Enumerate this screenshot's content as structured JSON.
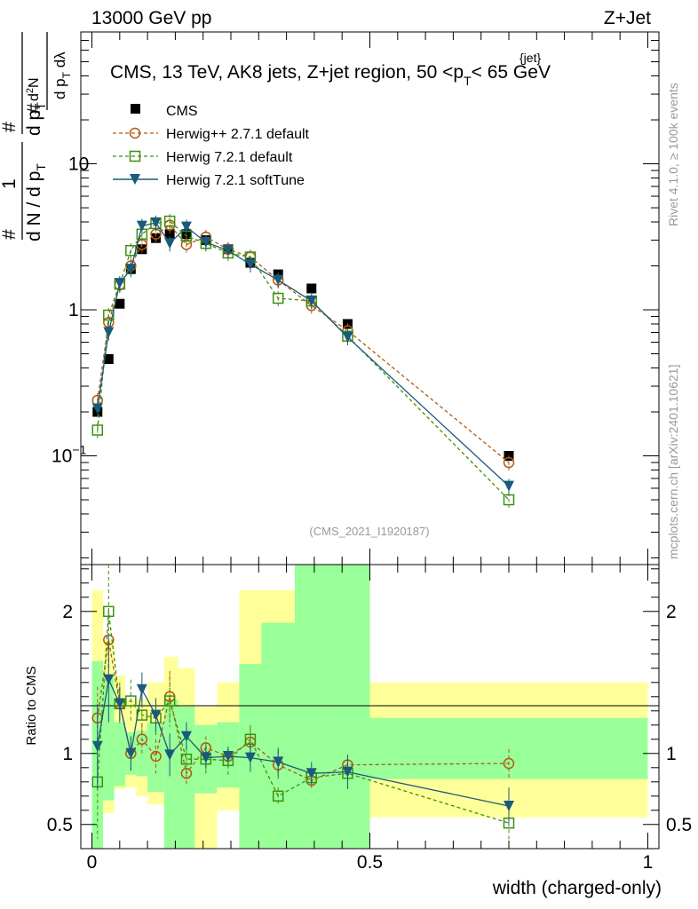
{
  "header": {
    "energy_label": "13000 GeV pp",
    "process_label": "Z+Jet"
  },
  "side_labels": {
    "rivet": "Rivet 4.1.0, ≥ 100k events",
    "mcplots": "mcplots.cern.ch [arXiv:2401.10621]"
  },
  "analysis_tag": "(CMS_2021_I1920187)",
  "colors": {
    "cms": "#000000",
    "herwigpp": "#b05a10",
    "herwig_default": "#3f8f10",
    "herwig_soft": "#1a5a7a",
    "band_inner": "#99ff99",
    "band_outer": "#ffff99"
  },
  "chart_data": [
    {
      "type": "scatter",
      "title": "CMS, 13 TeV, AK8 jets, Z+jet region, 50 <p_T^{jet}< 65 GeV",
      "title_parts": {
        "pre": "CMS, 13 TeV, AK8 jets, Z+jet region, 50 <p",
        "sup": "{jet}",
        "sub": "T",
        "post": "< 65 GeV"
      },
      "xlabel": "width (charged-only)",
      "ylabel": "1/dN/dp_T  d^2N/(dp_T dλ)",
      "yscale": "log",
      "xlim": [
        -0.02,
        1.02
      ],
      "ylim": [
        0.018,
        80
      ],
      "y_ticks": [
        {
          "value": 10,
          "base": "10",
          "exp": ""
        },
        {
          "value": 1,
          "base": "1",
          "exp": ""
        },
        {
          "value": 0.1,
          "base": "10",
          "exp": "−1"
        }
      ],
      "legend": {
        "placement": "top-left",
        "entries": [
          "CMS",
          "Herwig++ 2.7.1 default",
          "Herwig 7.2.1 default",
          "Herwig 7.2.1 softTune"
        ]
      },
      "x": [
        0.01,
        0.03,
        0.05,
        0.07,
        0.09,
        0.115,
        0.14,
        0.17,
        0.205,
        0.245,
        0.285,
        0.335,
        0.395,
        0.46,
        0.75
      ],
      "series": [
        {
          "name": "CMS",
          "values": [
            0.2,
            0.46,
            1.1,
            1.9,
            2.6,
            3.1,
            3.3,
            3.3,
            3.0,
            2.6,
            2.1,
            1.75,
            1.4,
            0.8,
            0.1
          ]
        },
        {
          "name": "Herwig++ 2.7.1 default",
          "values": [
            0.24,
            0.82,
            1.48,
            2.0,
            2.8,
            3.3,
            3.8,
            2.8,
            3.15,
            2.6,
            2.3,
            1.6,
            1.07,
            0.72,
            0.09
          ]
        },
        {
          "name": "Herwig 7.2.1 default",
          "values": [
            0.15,
            0.92,
            1.5,
            2.55,
            3.3,
            3.9,
            4.05,
            3.2,
            2.85,
            2.45,
            2.3,
            1.2,
            1.15,
            0.66,
            0.05
          ]
        },
        {
          "name": "Herwig 7.2.1 softTune",
          "values": [
            0.21,
            0.7,
            1.52,
            1.9,
            3.75,
            3.95,
            2.85,
            3.7,
            2.9,
            2.55,
            2.05,
            1.6,
            1.15,
            0.65,
            0.062
          ]
        }
      ]
    },
    {
      "type": "scatter",
      "ylabel": "Ratio to CMS",
      "xlabel": "width (charged-only)",
      "ylim": [
        0.33,
        2.33
      ],
      "xlim": [
        -0.02,
        1.02
      ],
      "y_ticks": [
        "0.5",
        "1",
        "2"
      ],
      "x_ticks": [
        "0",
        "0.5",
        "1"
      ],
      "band_bins": [
        {
          "lo": 0.0,
          "hi": 0.02,
          "inner": [
            0.33,
            1.65
          ],
          "outer": [
            0.33,
            2.15
          ]
        },
        {
          "lo": 0.02,
          "hi": 0.04,
          "inner": [
            0.67,
            1.55
          ],
          "outer": [
            0.58,
            1.8
          ]
        },
        {
          "lo": 0.04,
          "hi": 0.06,
          "inner": [
            0.77,
            1.22
          ],
          "outer": [
            0.75,
            1.55
          ]
        },
        {
          "lo": 0.06,
          "hi": 0.08,
          "inner": [
            0.85,
            1.15
          ],
          "outer": [
            0.76,
            1.38
          ]
        },
        {
          "lo": 0.08,
          "hi": 0.1,
          "inner": [
            0.84,
            1.16
          ],
          "outer": [
            0.7,
            1.38
          ]
        },
        {
          "lo": 0.1,
          "hi": 0.13,
          "inner": [
            0.73,
            1.22
          ],
          "outer": [
            0.64,
            1.5
          ]
        },
        {
          "lo": 0.13,
          "hi": 0.155,
          "inner": [
            0.33,
            1.38
          ],
          "outer": [
            0.33,
            1.68
          ]
        },
        {
          "lo": 0.155,
          "hi": 0.185,
          "inner": [
            0.33,
            1.33
          ],
          "outer": [
            0.33,
            1.6
          ]
        },
        {
          "lo": 0.185,
          "hi": 0.225,
          "inner": [
            0.72,
            1.2
          ],
          "outer": [
            0.33,
            1.33
          ]
        },
        {
          "lo": 0.225,
          "hi": 0.265,
          "inner": [
            0.76,
            1.22
          ],
          "outer": [
            0.6,
            1.5
          ]
        },
        {
          "lo": 0.265,
          "hi": 0.305,
          "inner": [
            0.33,
            1.63
          ],
          "outer": [
            0.33,
            2.15
          ]
        },
        {
          "lo": 0.305,
          "hi": 0.365,
          "inner": [
            0.33,
            1.92
          ],
          "outer": [
            0.33,
            2.15
          ]
        },
        {
          "lo": 0.365,
          "hi": 0.425,
          "inner": [
            0.33,
            2.33
          ],
          "outer": [
            0.33,
            2.33
          ]
        },
        {
          "lo": 0.425,
          "hi": 0.5,
          "inner": [
            0.33,
            2.33
          ],
          "outer": [
            0.33,
            2.33
          ]
        },
        {
          "lo": 0.5,
          "hi": 1.0,
          "inner": [
            0.82,
            1.25
          ],
          "outer": [
            0.55,
            1.5
          ]
        }
      ],
      "series": [
        {
          "name": "Herwig++ 2.7.1 default",
          "values": [
            1.25,
            1.8,
            1.35,
            1.0,
            1.1,
            0.98,
            1.4,
            0.86,
            1.04,
            0.98,
            1.08,
            0.92,
            0.81,
            0.92,
            0.93
          ],
          "errors": [
            0.22,
            0.22,
            0.12,
            0.12,
            0.1,
            0.12,
            0.18,
            0.08,
            0.08,
            0.06,
            0.1,
            0.1,
            0.06,
            0.07,
            0.1
          ]
        },
        {
          "name": "Herwig 7.2.1 default",
          "values": [
            0.8,
            2.0,
            1.35,
            1.37,
            1.27,
            1.25,
            1.37,
            0.96,
            0.96,
            0.95,
            1.1,
            0.7,
            0.83,
            0.86,
            0.51
          ],
          "errors": [
            0.4,
            0.4,
            0.15,
            0.15,
            0.12,
            0.12,
            0.18,
            0.1,
            0.1,
            0.1,
            0.1,
            0.06,
            0.06,
            0.08,
            0.13
          ]
        },
        {
          "name": "Herwig 7.2.1 softTune",
          "values": [
            1.05,
            1.52,
            1.35,
            1.0,
            1.45,
            1.27,
            0.99,
            1.12,
            0.97,
            0.98,
            0.97,
            0.94,
            0.86,
            0.87,
            0.63
          ],
          "errors": [
            0.3,
            0.3,
            0.12,
            0.12,
            0.12,
            0.12,
            0.15,
            0.1,
            0.08,
            0.06,
            0.1,
            0.1,
            0.08,
            0.12,
            0.13
          ]
        }
      ]
    }
  ]
}
